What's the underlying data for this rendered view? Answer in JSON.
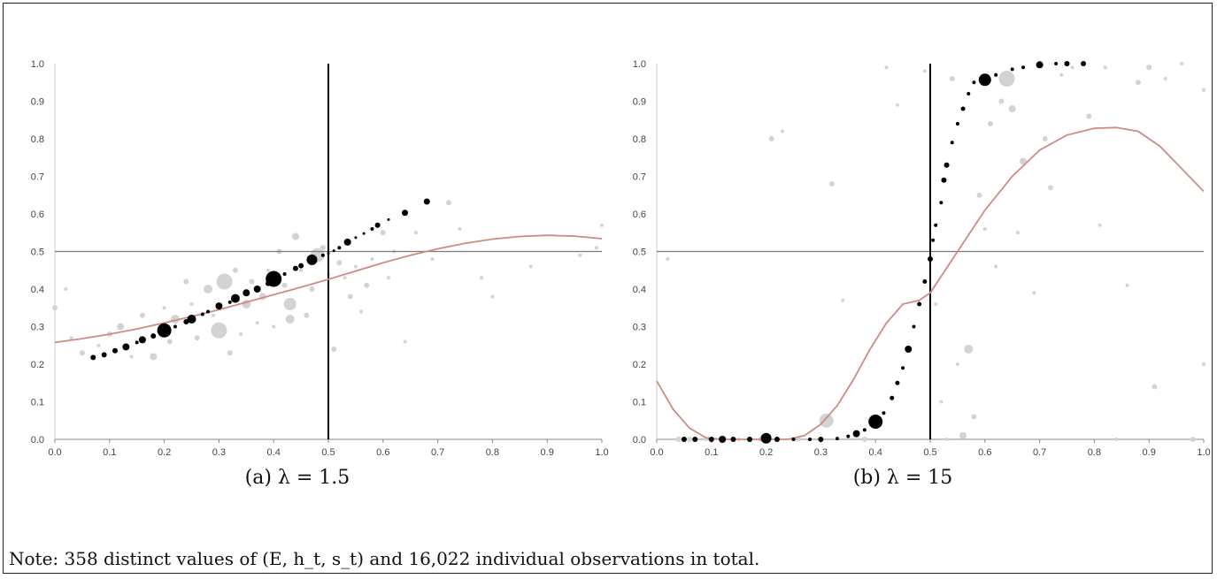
{
  "captions": {
    "a": "(a) λ = 1.5",
    "b": "(b) λ = 15"
  },
  "note": "Note: 358 distinct values of (E, h_t, s_t) and 16,022 individual observations in total.",
  "colors": {
    "model_points": "#000000",
    "data_points": "#d3d3d3",
    "fitted_curve": "#d08a85",
    "ref_lines": "#7a7a7a",
    "vertical_line": "#000000"
  },
  "chart_data": [
    {
      "type": "scatter",
      "panel": "a",
      "xlim": [
        0,
        1
      ],
      "ylim": [
        0,
        1
      ],
      "x_ticks": [
        "0.0",
        "0.1",
        "0.2",
        "0.3",
        "0.4",
        "0.5",
        "0.6",
        "0.7",
        "0.8",
        "0.9",
        "1.0"
      ],
      "y_ticks": [
        "0.0",
        "0.1",
        "0.2",
        "0.3",
        "0.4",
        "0.5",
        "0.6",
        "0.7",
        "0.8",
        "0.9",
        "1.0"
      ],
      "reference_lines": {
        "horizontal_y": 0.5,
        "vertical_x": 0.5
      },
      "grid": false,
      "model_points": [
        {
          "x": 0.07,
          "y": 0.218,
          "s": 3
        },
        {
          "x": 0.09,
          "y": 0.225,
          "s": 3
        },
        {
          "x": 0.11,
          "y": 0.236,
          "s": 3
        },
        {
          "x": 0.13,
          "y": 0.246,
          "s": 4
        },
        {
          "x": 0.15,
          "y": 0.258,
          "s": 2
        },
        {
          "x": 0.16,
          "y": 0.265,
          "s": 4
        },
        {
          "x": 0.18,
          "y": 0.275,
          "s": 3
        },
        {
          "x": 0.2,
          "y": 0.29,
          "s": 8
        },
        {
          "x": 0.22,
          "y": 0.3,
          "s": 2
        },
        {
          "x": 0.24,
          "y": 0.313,
          "s": 3
        },
        {
          "x": 0.25,
          "y": 0.32,
          "s": 5
        },
        {
          "x": 0.27,
          "y": 0.333,
          "s": 2
        },
        {
          "x": 0.28,
          "y": 0.34,
          "s": 2
        },
        {
          "x": 0.3,
          "y": 0.355,
          "s": 4
        },
        {
          "x": 0.32,
          "y": 0.365,
          "s": 2
        },
        {
          "x": 0.33,
          "y": 0.375,
          "s": 5
        },
        {
          "x": 0.35,
          "y": 0.39,
          "s": 4
        },
        {
          "x": 0.37,
          "y": 0.4,
          "s": 4
        },
        {
          "x": 0.39,
          "y": 0.415,
          "s": 3
        },
        {
          "x": 0.4,
          "y": 0.427,
          "s": 9
        },
        {
          "x": 0.42,
          "y": 0.44,
          "s": 2
        },
        {
          "x": 0.44,
          "y": 0.455,
          "s": 3
        },
        {
          "x": 0.45,
          "y": 0.462,
          "s": 3
        },
        {
          "x": 0.47,
          "y": 0.478,
          "s": 6
        },
        {
          "x": 0.49,
          "y": 0.49,
          "s": 2
        },
        {
          "x": 0.5,
          "y": 0.495,
          "s": 1.5
        },
        {
          "x": 0.51,
          "y": 0.502,
          "s": 1.5
        },
        {
          "x": 0.52,
          "y": 0.51,
          "s": 2
        },
        {
          "x": 0.535,
          "y": 0.525,
          "s": 4
        },
        {
          "x": 0.55,
          "y": 0.537,
          "s": 1.5
        },
        {
          "x": 0.565,
          "y": 0.548,
          "s": 1.5
        },
        {
          "x": 0.58,
          "y": 0.56,
          "s": 2
        },
        {
          "x": 0.59,
          "y": 0.57,
          "s": 3
        },
        {
          "x": 0.61,
          "y": 0.585,
          "s": 1.5
        },
        {
          "x": 0.64,
          "y": 0.603,
          "s": 3.5
        },
        {
          "x": 0.68,
          "y": 0.633,
          "s": 3.5
        }
      ],
      "data_points": [
        {
          "x": 0.0,
          "y": 0.35,
          "s": 3
        },
        {
          "x": 0.02,
          "y": 0.4,
          "s": 2
        },
        {
          "x": 0.03,
          "y": 0.27,
          "s": 2
        },
        {
          "x": 0.05,
          "y": 0.23,
          "s": 3
        },
        {
          "x": 0.08,
          "y": 0.25,
          "s": 2
        },
        {
          "x": 0.1,
          "y": 0.28,
          "s": 3
        },
        {
          "x": 0.12,
          "y": 0.3,
          "s": 4
        },
        {
          "x": 0.14,
          "y": 0.22,
          "s": 2
        },
        {
          "x": 0.16,
          "y": 0.33,
          "s": 3
        },
        {
          "x": 0.18,
          "y": 0.22,
          "s": 4
        },
        {
          "x": 0.2,
          "y": 0.35,
          "s": 2
        },
        {
          "x": 0.21,
          "y": 0.26,
          "s": 3
        },
        {
          "x": 0.22,
          "y": 0.32,
          "s": 5
        },
        {
          "x": 0.24,
          "y": 0.42,
          "s": 3
        },
        {
          "x": 0.25,
          "y": 0.36,
          "s": 2
        },
        {
          "x": 0.26,
          "y": 0.27,
          "s": 3
        },
        {
          "x": 0.28,
          "y": 0.4,
          "s": 5
        },
        {
          "x": 0.29,
          "y": 0.33,
          "s": 2
        },
        {
          "x": 0.3,
          "y": 0.29,
          "s": 9
        },
        {
          "x": 0.31,
          "y": 0.42,
          "s": 9
        },
        {
          "x": 0.32,
          "y": 0.23,
          "s": 3
        },
        {
          "x": 0.33,
          "y": 0.45,
          "s": 3
        },
        {
          "x": 0.34,
          "y": 0.28,
          "s": 2
        },
        {
          "x": 0.35,
          "y": 0.36,
          "s": 5
        },
        {
          "x": 0.36,
          "y": 0.42,
          "s": 3
        },
        {
          "x": 0.37,
          "y": 0.31,
          "s": 2
        },
        {
          "x": 0.38,
          "y": 0.38,
          "s": 4
        },
        {
          "x": 0.39,
          "y": 0.45,
          "s": 2
        },
        {
          "x": 0.4,
          "y": 0.3,
          "s": 2
        },
        {
          "x": 0.41,
          "y": 0.5,
          "s": 3
        },
        {
          "x": 0.42,
          "y": 0.41,
          "s": 3
        },
        {
          "x": 0.43,
          "y": 0.36,
          "s": 7
        },
        {
          "x": 0.43,
          "y": 0.32,
          "s": 5
        },
        {
          "x": 0.44,
          "y": 0.54,
          "s": 4
        },
        {
          "x": 0.45,
          "y": 0.45,
          "s": 2
        },
        {
          "x": 0.46,
          "y": 0.33,
          "s": 3
        },
        {
          "x": 0.47,
          "y": 0.4,
          "s": 3
        },
        {
          "x": 0.48,
          "y": 0.49,
          "s": 8
        },
        {
          "x": 0.49,
          "y": 0.51,
          "s": 3
        },
        {
          "x": 0.5,
          "y": 0.44,
          "s": 2
        },
        {
          "x": 0.51,
          "y": 0.24,
          "s": 3
        },
        {
          "x": 0.52,
          "y": 0.47,
          "s": 3
        },
        {
          "x": 0.53,
          "y": 0.43,
          "s": 2
        },
        {
          "x": 0.54,
          "y": 0.38,
          "s": 3
        },
        {
          "x": 0.55,
          "y": 0.46,
          "s": 2
        },
        {
          "x": 0.56,
          "y": 0.34,
          "s": 2
        },
        {
          "x": 0.57,
          "y": 0.41,
          "s": 3
        },
        {
          "x": 0.58,
          "y": 0.48,
          "s": 2
        },
        {
          "x": 0.6,
          "y": 0.55,
          "s": 3
        },
        {
          "x": 0.61,
          "y": 0.43,
          "s": 2
        },
        {
          "x": 0.62,
          "y": 0.5,
          "s": 2
        },
        {
          "x": 0.64,
          "y": 0.26,
          "s": 2
        },
        {
          "x": 0.66,
          "y": 0.55,
          "s": 2
        },
        {
          "x": 0.69,
          "y": 0.48,
          "s": 2
        },
        {
          "x": 0.72,
          "y": 0.63,
          "s": 3
        },
        {
          "x": 0.74,
          "y": 0.56,
          "s": 2
        },
        {
          "x": 0.78,
          "y": 0.43,
          "s": 2
        },
        {
          "x": 0.8,
          "y": 0.38,
          "s": 2
        },
        {
          "x": 0.87,
          "y": 0.46,
          "s": 2
        },
        {
          "x": 0.96,
          "y": 0.49,
          "s": 2
        },
        {
          "x": 1.0,
          "y": 0.57,
          "s": 2
        },
        {
          "x": 0.99,
          "y": 0.51,
          "s": 2
        }
      ],
      "fitted_curve": [
        [
          0.0,
          0.258
        ],
        [
          0.05,
          0.268
        ],
        [
          0.1,
          0.28
        ],
        [
          0.15,
          0.294
        ],
        [
          0.2,
          0.31
        ],
        [
          0.25,
          0.327
        ],
        [
          0.3,
          0.345
        ],
        [
          0.35,
          0.365
        ],
        [
          0.4,
          0.385
        ],
        [
          0.45,
          0.405
        ],
        [
          0.5,
          0.426
        ],
        [
          0.55,
          0.448
        ],
        [
          0.6,
          0.47
        ],
        [
          0.65,
          0.49
        ],
        [
          0.7,
          0.507
        ],
        [
          0.75,
          0.522
        ],
        [
          0.8,
          0.533
        ],
        [
          0.85,
          0.54
        ],
        [
          0.9,
          0.543
        ],
        [
          0.95,
          0.541
        ],
        [
          1.0,
          0.534
        ]
      ]
    },
    {
      "type": "scatter",
      "panel": "b",
      "xlim": [
        0,
        1
      ],
      "ylim": [
        0,
        1
      ],
      "x_ticks": [
        "0.0",
        "0.1",
        "0.2",
        "0.3",
        "0.4",
        "0.5",
        "0.6",
        "0.7",
        "0.8",
        "0.9",
        "1.0"
      ],
      "y_ticks": [
        "0.0",
        "0.1",
        "0.2",
        "0.3",
        "0.4",
        "0.5",
        "0.6",
        "0.7",
        "0.8",
        "0.9",
        "1.0"
      ],
      "reference_lines": {
        "horizontal_y": 0.5,
        "vertical_x": 0.5
      },
      "grid": false,
      "model_points": [
        {
          "x": 0.05,
          "y": 0.0,
          "s": 3
        },
        {
          "x": 0.07,
          "y": 0.0,
          "s": 3
        },
        {
          "x": 0.1,
          "y": 0.0,
          "s": 3
        },
        {
          "x": 0.12,
          "y": 0.0,
          "s": 4
        },
        {
          "x": 0.14,
          "y": 0.0,
          "s": 3
        },
        {
          "x": 0.17,
          "y": 0.0,
          "s": 3
        },
        {
          "x": 0.2,
          "y": 0.003,
          "s": 6
        },
        {
          "x": 0.22,
          "y": 0.0,
          "s": 3
        },
        {
          "x": 0.25,
          "y": 0.0,
          "s": 2
        },
        {
          "x": 0.28,
          "y": 0.0,
          "s": 2
        },
        {
          "x": 0.3,
          "y": 0.0,
          "s": 3
        },
        {
          "x": 0.33,
          "y": 0.002,
          "s": 2
        },
        {
          "x": 0.35,
          "y": 0.008,
          "s": 2
        },
        {
          "x": 0.365,
          "y": 0.015,
          "s": 4
        },
        {
          "x": 0.38,
          "y": 0.025,
          "s": 2
        },
        {
          "x": 0.4,
          "y": 0.047,
          "s": 8
        },
        {
          "x": 0.415,
          "y": 0.07,
          "s": 2
        },
        {
          "x": 0.43,
          "y": 0.11,
          "s": 2.5
        },
        {
          "x": 0.44,
          "y": 0.15,
          "s": 2.5
        },
        {
          "x": 0.45,
          "y": 0.19,
          "s": 2
        },
        {
          "x": 0.46,
          "y": 0.24,
          "s": 4
        },
        {
          "x": 0.47,
          "y": 0.3,
          "s": 2
        },
        {
          "x": 0.48,
          "y": 0.36,
          "s": 2.5
        },
        {
          "x": 0.49,
          "y": 0.42,
          "s": 2.5
        },
        {
          "x": 0.5,
          "y": 0.48,
          "s": 3
        },
        {
          "x": 0.505,
          "y": 0.53,
          "s": 2
        },
        {
          "x": 0.51,
          "y": 0.57,
          "s": 2
        },
        {
          "x": 0.52,
          "y": 0.63,
          "s": 2
        },
        {
          "x": 0.525,
          "y": 0.69,
          "s": 3
        },
        {
          "x": 0.53,
          "y": 0.73,
          "s": 3
        },
        {
          "x": 0.54,
          "y": 0.79,
          "s": 2
        },
        {
          "x": 0.55,
          "y": 0.84,
          "s": 2
        },
        {
          "x": 0.56,
          "y": 0.88,
          "s": 2.5
        },
        {
          "x": 0.57,
          "y": 0.92,
          "s": 2
        },
        {
          "x": 0.58,
          "y": 0.95,
          "s": 2
        },
        {
          "x": 0.6,
          "y": 0.957,
          "s": 7
        },
        {
          "x": 0.62,
          "y": 0.97,
          "s": 2
        },
        {
          "x": 0.65,
          "y": 0.985,
          "s": 2
        },
        {
          "x": 0.67,
          "y": 0.99,
          "s": 2
        },
        {
          "x": 0.7,
          "y": 0.997,
          "s": 4
        },
        {
          "x": 0.73,
          "y": 1.0,
          "s": 2
        },
        {
          "x": 0.75,
          "y": 1.0,
          "s": 3
        },
        {
          "x": 0.78,
          "y": 1.0,
          "s": 3
        }
      ],
      "data_points": [
        {
          "x": 0.02,
          "y": 0.48,
          "s": 2
        },
        {
          "x": 0.04,
          "y": 0.0,
          "s": 3
        },
        {
          "x": 0.06,
          "y": 0.0,
          "s": 3
        },
        {
          "x": 0.09,
          "y": 0.0,
          "s": 2
        },
        {
          "x": 0.15,
          "y": 0.0,
          "s": 2
        },
        {
          "x": 0.19,
          "y": 0.0,
          "s": 3
        },
        {
          "x": 0.21,
          "y": 0.8,
          "s": 3
        },
        {
          "x": 0.23,
          "y": 0.82,
          "s": 2
        },
        {
          "x": 0.26,
          "y": 0.0,
          "s": 2
        },
        {
          "x": 0.31,
          "y": 0.05,
          "s": 8
        },
        {
          "x": 0.32,
          "y": 0.68,
          "s": 3
        },
        {
          "x": 0.34,
          "y": 0.37,
          "s": 2
        },
        {
          "x": 0.38,
          "y": 0.0,
          "s": 3
        },
        {
          "x": 0.42,
          "y": 0.99,
          "s": 2
        },
        {
          "x": 0.44,
          "y": 0.89,
          "s": 2
        },
        {
          "x": 0.49,
          "y": 0.98,
          "s": 2
        },
        {
          "x": 0.51,
          "y": 0.36,
          "s": 2
        },
        {
          "x": 0.52,
          "y": 0.1,
          "s": 2
        },
        {
          "x": 0.53,
          "y": 0.0,
          "s": 2
        },
        {
          "x": 0.54,
          "y": 0.96,
          "s": 3
        },
        {
          "x": 0.55,
          "y": 0.2,
          "s": 2
        },
        {
          "x": 0.56,
          "y": 0.01,
          "s": 4
        },
        {
          "x": 0.57,
          "y": 0.24,
          "s": 5
        },
        {
          "x": 0.58,
          "y": 0.06,
          "s": 3
        },
        {
          "x": 0.59,
          "y": 0.65,
          "s": 3
        },
        {
          "x": 0.6,
          "y": 0.56,
          "s": 2
        },
        {
          "x": 0.61,
          "y": 0.84,
          "s": 3
        },
        {
          "x": 0.62,
          "y": 0.46,
          "s": 2
        },
        {
          "x": 0.63,
          "y": 0.9,
          "s": 3
        },
        {
          "x": 0.64,
          "y": 0.96,
          "s": 9
        },
        {
          "x": 0.65,
          "y": 0.88,
          "s": 4
        },
        {
          "x": 0.66,
          "y": 0.55,
          "s": 2
        },
        {
          "x": 0.67,
          "y": 0.74,
          "s": 4
        },
        {
          "x": 0.69,
          "y": 0.39,
          "s": 2
        },
        {
          "x": 0.71,
          "y": 0.8,
          "s": 3
        },
        {
          "x": 0.72,
          "y": 0.67,
          "s": 3
        },
        {
          "x": 0.74,
          "y": 0.97,
          "s": 2
        },
        {
          "x": 0.76,
          "y": 0.99,
          "s": 2
        },
        {
          "x": 0.79,
          "y": 0.86,
          "s": 3
        },
        {
          "x": 0.81,
          "y": 0.57,
          "s": 2
        },
        {
          "x": 0.82,
          "y": 0.99,
          "s": 2
        },
        {
          "x": 0.84,
          "y": 0.0,
          "s": 2
        },
        {
          "x": 0.86,
          "y": 0.41,
          "s": 2
        },
        {
          "x": 0.88,
          "y": 0.95,
          "s": 3
        },
        {
          "x": 0.9,
          "y": 0.99,
          "s": 3
        },
        {
          "x": 0.91,
          "y": 0.14,
          "s": 3
        },
        {
          "x": 0.93,
          "y": 0.96,
          "s": 2
        },
        {
          "x": 0.96,
          "y": 1.0,
          "s": 2
        },
        {
          "x": 0.98,
          "y": 0.0,
          "s": 3
        },
        {
          "x": 1.0,
          "y": 0.93,
          "s": 2
        },
        {
          "x": 1.0,
          "y": 0.2,
          "s": 2
        }
      ],
      "fitted_curve": [
        [
          0.0,
          0.155
        ],
        [
          0.03,
          0.08
        ],
        [
          0.06,
          0.03
        ],
        [
          0.09,
          0.004
        ],
        [
          0.12,
          -0.01
        ],
        [
          0.15,
          -0.018
        ],
        [
          0.18,
          -0.02
        ],
        [
          0.21,
          -0.015
        ],
        [
          0.24,
          -0.005
        ],
        [
          0.27,
          0.01
        ],
        [
          0.3,
          0.04
        ],
        [
          0.33,
          0.09
        ],
        [
          0.36,
          0.16
        ],
        [
          0.39,
          0.24
        ],
        [
          0.42,
          0.31
        ],
        [
          0.45,
          0.36
        ],
        [
          0.48,
          0.37
        ],
        [
          0.5,
          0.39
        ],
        [
          0.55,
          0.5
        ],
        [
          0.6,
          0.61
        ],
        [
          0.65,
          0.7
        ],
        [
          0.7,
          0.77
        ],
        [
          0.75,
          0.81
        ],
        [
          0.8,
          0.828
        ],
        [
          0.84,
          0.83
        ],
        [
          0.88,
          0.82
        ],
        [
          0.92,
          0.78
        ],
        [
          0.96,
          0.72
        ],
        [
          1.0,
          0.66
        ]
      ]
    }
  ]
}
